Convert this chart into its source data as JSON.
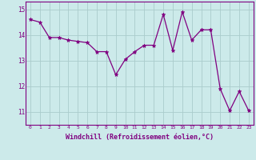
{
  "x": [
    0,
    1,
    2,
    3,
    4,
    5,
    6,
    7,
    8,
    9,
    10,
    11,
    12,
    13,
    14,
    15,
    16,
    17,
    18,
    19,
    20,
    21,
    22,
    23
  ],
  "y": [
    14.6,
    14.5,
    13.9,
    13.9,
    13.8,
    13.75,
    13.7,
    13.35,
    13.35,
    12.45,
    13.05,
    13.35,
    13.6,
    13.6,
    14.8,
    13.4,
    14.9,
    13.8,
    14.2,
    14.2,
    11.9,
    11.05,
    11.8,
    11.05
  ],
  "line_color": "#800080",
  "marker": "*",
  "marker_size": 3.5,
  "bg_color": "#cceaea",
  "grid_color": "#aacccc",
  "xlabel": "Windchill (Refroidissement éolien,°C)",
  "xlabel_color": "#800080",
  "tick_color": "#800080",
  "ylim": [
    10.5,
    15.3
  ],
  "yticks": [
    11,
    12,
    13,
    14,
    15
  ],
  "xticks": [
    0,
    1,
    2,
    3,
    4,
    5,
    6,
    7,
    8,
    9,
    10,
    11,
    12,
    13,
    14,
    15,
    16,
    17,
    18,
    19,
    20,
    21,
    22,
    23
  ],
  "spine_color": "#800080",
  "xlim": [
    -0.5,
    23.5
  ]
}
